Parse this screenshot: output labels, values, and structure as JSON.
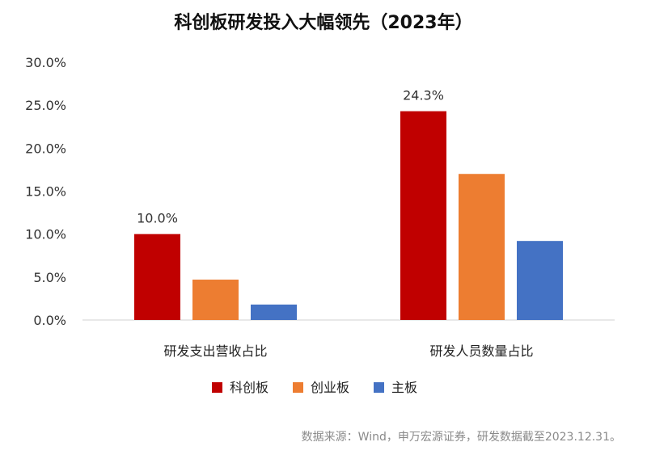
{
  "chart_data": {
    "type": "bar",
    "title": "科创板研发投入大幅领先（2023年）",
    "categories": [
      "研发支出营收占比",
      "研发人员数量占比"
    ],
    "series": [
      {
        "name": "科创板",
        "color": "#C00000",
        "values": [
          10.0,
          24.3
        ]
      },
      {
        "name": "创业板",
        "color": "#ED7D31",
        "values": [
          4.7,
          17.0
        ]
      },
      {
        "name": "主板",
        "color": "#4472C4",
        "values": [
          1.8,
          9.2
        ]
      }
    ],
    "data_labels": [
      {
        "series": 0,
        "category": 0,
        "text": "10.0%"
      },
      {
        "series": 0,
        "category": 1,
        "text": "24.3%"
      }
    ],
    "yticks": [
      "0.0%",
      "5.0%",
      "10.0%",
      "15.0%",
      "20.0%",
      "25.0%",
      "30.0%"
    ],
    "ylim": [
      0,
      30
    ],
    "grid": false,
    "legend": "bottom"
  },
  "source": "数据来源：Wind，申万宏源证券，研发数据截至2023.12.31。"
}
